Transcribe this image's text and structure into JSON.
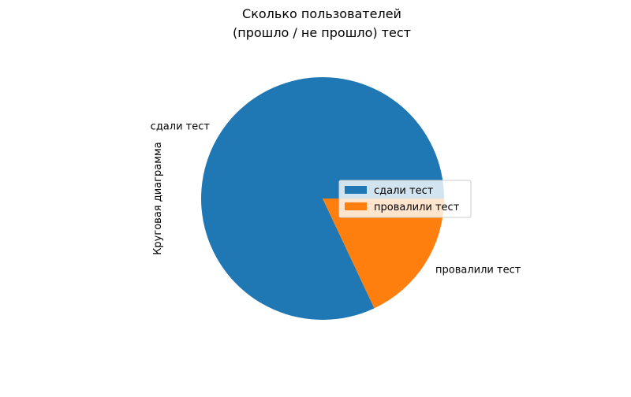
{
  "chart_data": {
    "type": "pie",
    "title_lines": [
      "Сколько пользователей",
      "(прошло / не прошло) тест"
    ],
    "ylabel": "Круговая диаграмма",
    "categories": [
      "сдали тест",
      "провалили тест"
    ],
    "values": [
      82,
      18
    ],
    "colors": [
      "#1f77b4",
      "#ff7f0e"
    ],
    "start_angle_deg": 0,
    "direction": "counterclockwise",
    "legend": {
      "position": "center-right",
      "entries": [
        "сдали тест",
        "провалили тест"
      ]
    }
  }
}
